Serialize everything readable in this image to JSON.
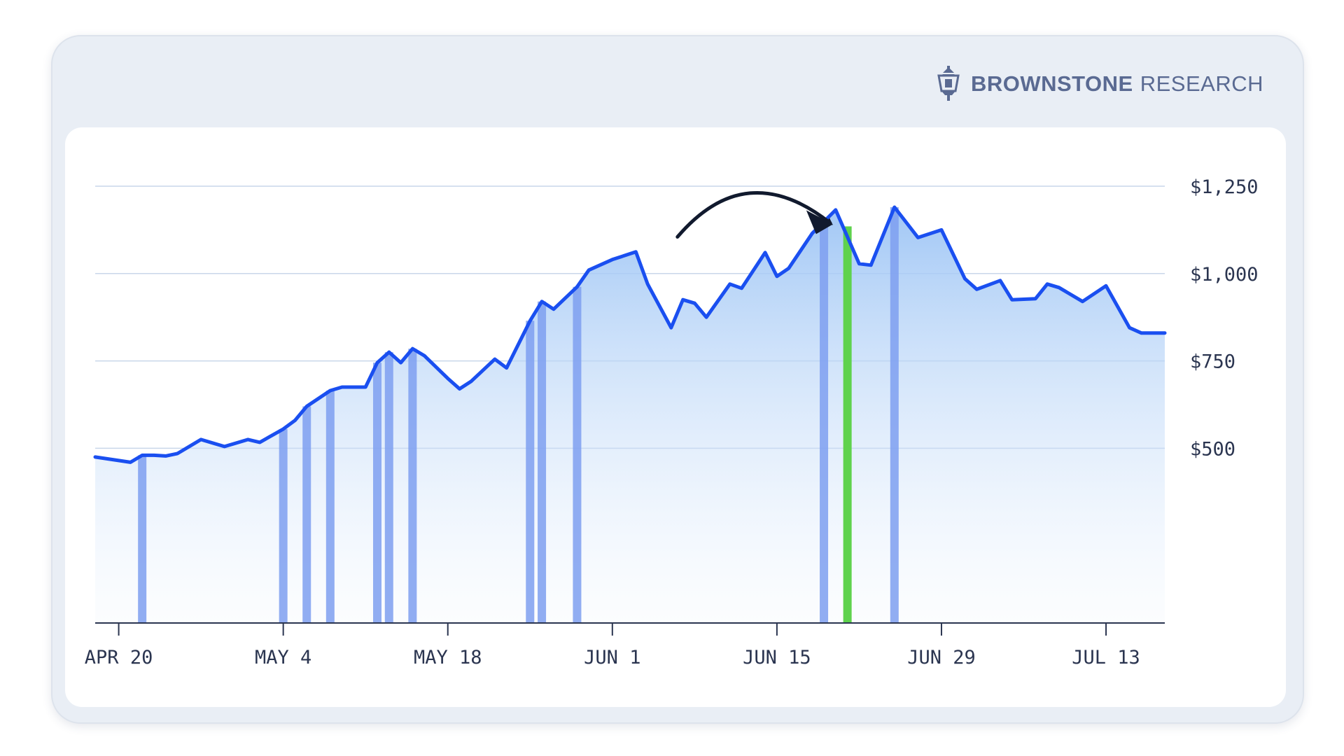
{
  "brand": {
    "name_bold": "BROWNSTONE",
    "name_light": "RESEARCH",
    "logo_icon": "lantern-icon",
    "color": "#5a6a92"
  },
  "chart_data": {
    "type": "area",
    "title": "",
    "xlabel": "",
    "ylabel": "",
    "ylim": [
      0,
      1250
    ],
    "yticks": [
      {
        "value": 1250,
        "label": "$1,250"
      },
      {
        "value": 1000,
        "label": "$1,000"
      },
      {
        "value": 750,
        "label": "$750"
      },
      {
        "value": 500,
        "label": "$500"
      }
    ],
    "xticks": [
      {
        "date": "2020-04-20",
        "label": "APR 20"
      },
      {
        "date": "2020-05-04",
        "label": "MAY 4"
      },
      {
        "date": "2020-05-18",
        "label": "MAY 18"
      },
      {
        "date": "2020-06-01",
        "label": "JUN 1"
      },
      {
        "date": "2020-06-15",
        "label": "JUN 15"
      },
      {
        "date": "2020-06-29",
        "label": "JUN 29"
      },
      {
        "date": "2020-07-13",
        "label": "JUL 13"
      }
    ],
    "xlim": [
      "2020-04-18",
      "2020-07-18"
    ],
    "grid": true,
    "line_color": "#1a4ff0",
    "bar_color": "#7e9ff0",
    "highlight_color": "#5fd24d",
    "series": [
      {
        "points": [
          [
            "2020-04-18",
            475
          ],
          [
            "2020-04-21",
            460
          ],
          [
            "2020-04-22",
            480
          ],
          [
            "2020-04-23",
            480
          ],
          [
            "2020-04-24",
            478
          ],
          [
            "2020-04-25",
            485
          ],
          [
            "2020-04-27",
            525
          ],
          [
            "2020-04-29",
            505
          ],
          [
            "2020-05-01",
            525
          ],
          [
            "2020-05-02",
            517
          ],
          [
            "2020-05-04",
            555
          ],
          [
            "2020-05-05",
            580
          ],
          [
            "2020-05-06",
            620
          ],
          [
            "2020-05-08",
            665
          ],
          [
            "2020-05-09",
            675
          ],
          [
            "2020-05-11",
            675
          ],
          [
            "2020-05-12",
            745
          ],
          [
            "2020-05-13",
            775
          ],
          [
            "2020-05-14",
            745
          ],
          [
            "2020-05-15",
            785
          ],
          [
            "2020-05-16",
            765
          ],
          [
            "2020-05-18",
            700
          ],
          [
            "2020-05-19",
            670
          ],
          [
            "2020-05-20",
            692
          ],
          [
            "2020-05-22",
            755
          ],
          [
            "2020-05-23",
            730
          ],
          [
            "2020-05-25",
            865
          ],
          [
            "2020-05-26",
            920
          ],
          [
            "2020-05-27",
            898
          ],
          [
            "2020-05-29",
            962
          ],
          [
            "2020-05-30",
            1010
          ],
          [
            "2020-06-01",
            1040
          ],
          [
            "2020-06-03",
            1062
          ],
          [
            "2020-06-04",
            970
          ],
          [
            "2020-06-06",
            845
          ],
          [
            "2020-06-07",
            925
          ],
          [
            "2020-06-08",
            915
          ],
          [
            "2020-06-09",
            875
          ],
          [
            "2020-06-11",
            970
          ],
          [
            "2020-06-12",
            958
          ],
          [
            "2020-06-14",
            1060
          ],
          [
            "2020-06-15",
            992
          ],
          [
            "2020-06-16",
            1015
          ],
          [
            "2020-06-18",
            1115
          ],
          [
            "2020-06-20",
            1182
          ],
          [
            "2020-06-22",
            1028
          ],
          [
            "2020-06-23",
            1024
          ],
          [
            "2020-06-25",
            1190
          ],
          [
            "2020-06-27",
            1103
          ],
          [
            "2020-06-29",
            1125
          ],
          [
            "2020-07-01",
            985
          ],
          [
            "2020-07-02",
            955
          ],
          [
            "2020-07-04",
            980
          ],
          [
            "2020-07-05",
            925
          ],
          [
            "2020-07-07",
            928
          ],
          [
            "2020-07-08",
            970
          ],
          [
            "2020-07-09",
            960
          ],
          [
            "2020-07-11",
            920
          ],
          [
            "2020-07-13",
            965
          ],
          [
            "2020-07-15",
            845
          ],
          [
            "2020-07-16",
            830
          ],
          [
            "2020-07-18",
            830
          ]
        ]
      }
    ],
    "trade_markers": [
      {
        "date": "2020-04-22",
        "value": 480
      },
      {
        "date": "2020-05-04",
        "value": 555
      },
      {
        "date": "2020-05-06",
        "value": 620
      },
      {
        "date": "2020-05-08",
        "value": 665
      },
      {
        "date": "2020-05-12",
        "value": 745
      },
      {
        "date": "2020-05-13",
        "value": 775
      },
      {
        "date": "2020-05-15",
        "value": 785
      },
      {
        "date": "2020-05-25",
        "value": 865
      },
      {
        "date": "2020-05-26",
        "value": 920
      },
      {
        "date": "2020-05-29",
        "value": 962
      },
      {
        "date": "2020-06-19",
        "value": 1148
      },
      {
        "date": "2020-06-25",
        "value": 1190
      }
    ],
    "highlight_marker": {
      "date": "2020-06-21",
      "value": 1135
    },
    "annotation": {
      "type": "curved-arrow",
      "points_to": "2020-06-20"
    }
  }
}
